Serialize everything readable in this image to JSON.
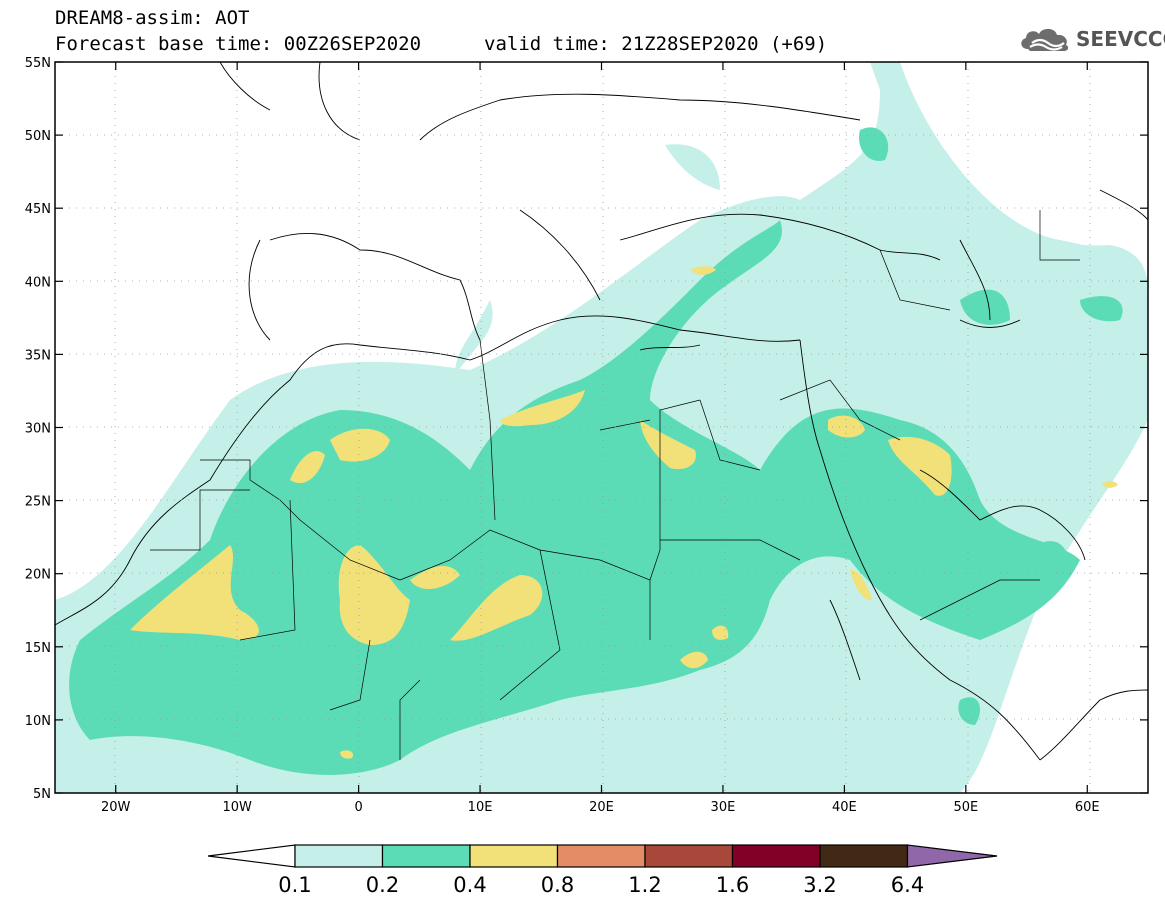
{
  "header": {
    "title": "DREAM8-assim: AOT",
    "base_time": "Forecast base time: 00Z26SEP2020",
    "valid_time": "valid time: 21Z28SEP2020 (+69)"
  },
  "logo": {
    "text": "SEEVCCC",
    "icon": "cloud-icon"
  },
  "map": {
    "lat_labels": [
      "55N",
      "50N",
      "45N",
      "40N",
      "35N",
      "30N",
      "25N",
      "20N",
      "15N",
      "10N",
      "5N"
    ],
    "lon_labels": [
      "20W",
      "10W",
      "0",
      "10E",
      "20E",
      "30E",
      "40E",
      "50E",
      "60E"
    ],
    "lon_range": [
      -25,
      65
    ],
    "lat_range": [
      5,
      55
    ],
    "gridlines": "dotted"
  },
  "colorbar": {
    "levels": [
      "0.1",
      "0.2",
      "0.4",
      "0.8",
      "1.2",
      "1.6",
      "3.2",
      "6.4"
    ],
    "colors": [
      "#ffffff",
      "#c4f0e9",
      "#5cdcb6",
      "#f2e078",
      "#e48c66",
      "#a8483a",
      "#820028",
      "#412916",
      "#9068aa"
    ]
  }
}
